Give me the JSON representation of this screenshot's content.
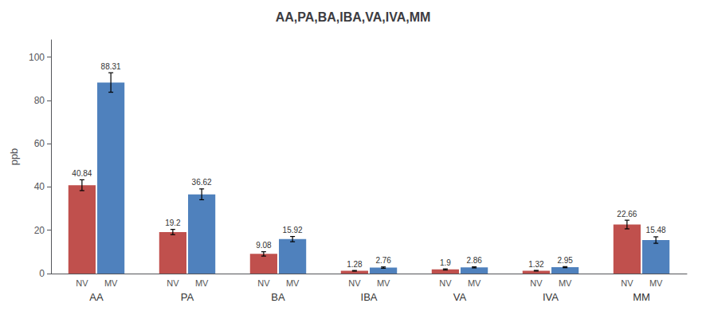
{
  "chart_data": {
    "type": "bar",
    "title": "AA,PA,BA,IBA,VA,IVA,MM",
    "ylabel": "ppb",
    "categories": [
      "AA",
      "PA",
      "BA",
      "IBA",
      "VA",
      "IVA",
      "MM"
    ],
    "series": [
      {
        "name": "NV",
        "color": "#c0504d",
        "values": [
          40.84,
          19.2,
          9.08,
          1.28,
          1.9,
          1.32,
          22.66
        ],
        "errors": [
          2.5,
          1.2,
          1.0,
          0.15,
          0.25,
          0.15,
          2.0
        ]
      },
      {
        "name": "MV",
        "color": "#4f81bd",
        "values": [
          88.31,
          36.62,
          15.92,
          2.76,
          2.86,
          2.95,
          15.48
        ],
        "errors": [
          4.5,
          2.5,
          1.2,
          0.3,
          0.25,
          0.25,
          1.5
        ]
      }
    ],
    "ylim": [
      0,
      108
    ],
    "yticks": [
      0,
      20,
      40,
      60,
      80,
      100
    ],
    "data_labels": true,
    "grid": false
  }
}
